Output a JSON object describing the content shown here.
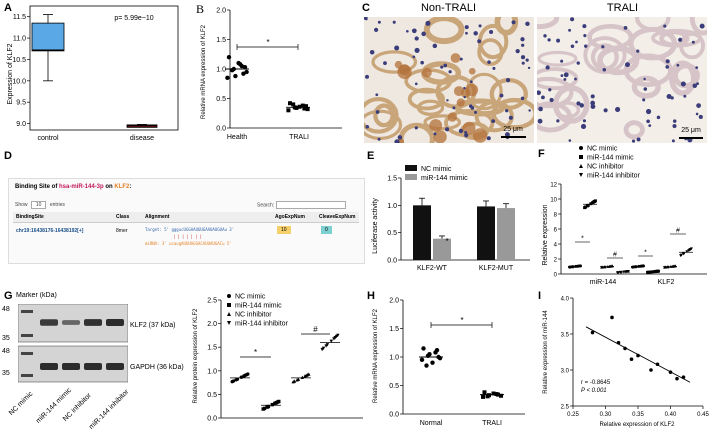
{
  "panel_labels": {
    "A": "A",
    "B": "B",
    "C": "C",
    "D": "D",
    "E": "E",
    "F": "F",
    "G": "G",
    "H": "H",
    "I": "I"
  },
  "panelA": {
    "ylabel": "Expression of KLF2",
    "yticks": [
      "9.0",
      "9.5",
      "10.0",
      "10.5",
      "11.0",
      "11.5"
    ],
    "categories": [
      "control",
      "disease"
    ],
    "pvalue": "p= 5.99e−10",
    "colors": {
      "control": "#5aa9e6",
      "disease": "#7b0f10"
    }
  },
  "panelB": {
    "ylabel": "Relative mRNA expression of KLF2",
    "yticks": [
      "0.0",
      "0.5",
      "1.0",
      "1.5",
      "2.0"
    ],
    "categories": [
      "Health",
      "TRALI"
    ],
    "sig": "*"
  },
  "panelC": {
    "titles": [
      "Non-TRALI",
      "TRALI"
    ],
    "scalebars": [
      "25 μm",
      "25 μm"
    ]
  },
  "panelD": {
    "title_prefix": "Binding Site of ",
    "title_mirna": "hsa-miR-144-3p",
    "title_mid": " on ",
    "title_gene": "KLF2",
    "title_end": ":",
    "show_label": "Show",
    "entries_value": "10",
    "entries_label": "entries",
    "search_label": "Search:",
    "headers": [
      "BindingSite",
      "Class",
      "Alignment",
      "AgoExpNum",
      "CleaveExpNum"
    ],
    "row": {
      "site": "chr19:16438176-16438192[+]",
      "class": "8mer",
      "target": "Target: 5' gggucUGGAAUUUGAAUAUGUAu 3'",
      "mirna": "miRNA: 3' ucaugAUUUAGGACAUUAUGACu 5'",
      "ago": "10",
      "cleave": "0"
    }
  },
  "panelE": {
    "ylabel": "Luciferase activity",
    "yticks": [
      "0.0",
      "0.5",
      "1.0",
      "1.5"
    ],
    "legend": [
      "NC mimic",
      "miR-144 mimic"
    ],
    "categories": [
      "KLF2-WT",
      "KLF2-MUT"
    ],
    "sig": "*",
    "colors": {
      "nc": "#111111",
      "mimic": "#999999"
    }
  },
  "panelF": {
    "ylabel": "Relative expression",
    "yticks": [
      "0",
      "2",
      "4",
      "6",
      "8",
      "10",
      "12"
    ],
    "legend": [
      "NC mimic",
      "miR-144 mimic",
      "NC inhibitor",
      "miR-144 inhibitor"
    ],
    "categories": [
      "miR-144",
      "KLF2"
    ],
    "sig_star": "*",
    "sig_hash": "#"
  },
  "panelG": {
    "marker_label": "Marker (kDa)",
    "mw": [
      "48",
      "35",
      "48",
      "35"
    ],
    "band_labels": [
      "KLF2 (37 kDa)",
      "GAPDH (36 kDa)"
    ],
    "lanes": [
      "NC mimic",
      "miR-144 mimic",
      "NC inhibitor",
      "miR-144 inhibitor"
    ],
    "ylabel": "Relative protein expression of KLF2",
    "yticks": [
      "0.0",
      "0.5",
      "1.0",
      "1.5",
      "2.0",
      "2.5"
    ],
    "legend": [
      "NC mimic",
      "miR-144 mimic",
      "NC inhibitor",
      "miR-144 inhibitor"
    ],
    "sig_star": "*",
    "sig_hash": "#"
  },
  "panelH": {
    "ylabel": "Relative mRNA expression of KLF2",
    "yticks": [
      "0.0",
      "0.5",
      "1.0",
      "1.5",
      "2.0"
    ],
    "categories": [
      "Normal",
      "TRALI"
    ],
    "sig": "*"
  },
  "panelI": {
    "ylabel": "Relative expression of miR-144",
    "xlabel": "Relative expression of KLF2",
    "yticks": [
      "2.5",
      "3.0",
      "3.5",
      "4.0"
    ],
    "xticks": [
      "0.25",
      "0.30",
      "0.35",
      "0.40",
      "0.45"
    ],
    "r_text": "r = -0.8645",
    "p_text": "P < 0.001"
  },
  "chart_data": [
    {
      "panel": "A",
      "type": "box",
      "categories": [
        "control",
        "disease"
      ],
      "boxes": [
        {
          "min": 10.0,
          "q1": 10.7,
          "median": 10.72,
          "q3": 11.35,
          "max": 11.55
        },
        {
          "min": 8.92,
          "q1": 8.93,
          "median": 8.95,
          "q3": 8.97,
          "max": 8.98
        }
      ],
      "ylim": [
        8.85,
        11.75
      ],
      "annotation": "p= 5.99e−10"
    },
    {
      "panel": "B",
      "type": "scatter",
      "categories": [
        "Health",
        "TRALI"
      ],
      "series": [
        {
          "values": [
            1.2,
            1.05,
            1.0,
            0.95,
            0.85,
            1.1,
            0.92,
            0.98,
            1.03,
            0.88,
            1.08
          ]
        },
        {
          "values": [
            0.42,
            0.38,
            0.35,
            0.32,
            0.3,
            0.36,
            0.33,
            0.4,
            0.37,
            0.34
          ]
        }
      ],
      "means": [
        1.0,
        0.35
      ],
      "ylim": [
        0,
        2
      ]
    },
    {
      "panel": "E",
      "type": "bar",
      "categories": [
        "KLF2-WT",
        "KLF2-MUT"
      ],
      "series": [
        {
          "name": "NC mimic",
          "values": [
            1.0,
            0.98
          ],
          "err": [
            0.13,
            0.1
          ]
        },
        {
          "name": "miR-144 mimic",
          "values": [
            0.39,
            0.95
          ],
          "err": [
            0.05,
            0.08
          ]
        }
      ],
      "ylim": [
        0,
        1.5
      ]
    },
    {
      "panel": "F",
      "type": "scatter",
      "categories": [
        "miR-144",
        "KLF2"
      ],
      "series": [
        {
          "name": "NC mimic",
          "values": [
            1.0,
            1.0
          ]
        },
        {
          "name": "miR-144 mimic",
          "values": [
            9.3,
            0.3
          ]
        },
        {
          "name": "NC inhibitor",
          "values": [
            1.0,
            1.0
          ]
        },
        {
          "name": "miR-144 inhibitor",
          "values": [
            0.25,
            2.9
          ]
        }
      ],
      "ylim": [
        0,
        12
      ]
    },
    {
      "panel": "G",
      "type": "scatter",
      "categories": [
        "NC mimic",
        "miR-144 mimic",
        "NC inhibitor",
        "miR-144 inhibitor"
      ],
      "values": [
        0.85,
        0.27,
        0.85,
        1.6
      ],
      "ylim": [
        0,
        2.5
      ]
    },
    {
      "panel": "H",
      "type": "scatter",
      "categories": [
        "Normal",
        "TRALI"
      ],
      "series": [
        {
          "values": [
            1.15,
            1.08,
            1.02,
            0.98,
            0.95,
            0.9,
            1.12,
            0.85,
            1.0,
            1.05
          ]
        },
        {
          "values": [
            0.38,
            0.35,
            0.33,
            0.32,
            0.3,
            0.36,
            0.34,
            0.31
          ]
        }
      ],
      "means": [
        1.0,
        0.34
      ],
      "ylim": [
        0,
        2
      ]
    },
    {
      "panel": "I",
      "type": "scatter",
      "points": [
        [
          0.28,
          3.52
        ],
        [
          0.31,
          3.73
        ],
        [
          0.32,
          3.38
        ],
        [
          0.33,
          3.3
        ],
        [
          0.34,
          3.15
        ],
        [
          0.35,
          3.2
        ],
        [
          0.37,
          3.0
        ],
        [
          0.38,
          3.08
        ],
        [
          0.4,
          2.97
        ],
        [
          0.41,
          2.88
        ],
        [
          0.42,
          2.9
        ]
      ],
      "fit": [
        [
          0.27,
          3.6
        ],
        [
          0.43,
          2.83
        ]
      ],
      "xlim": [
        0.25,
        0.45
      ],
      "ylim": [
        2.5,
        4.0
      ]
    }
  ]
}
